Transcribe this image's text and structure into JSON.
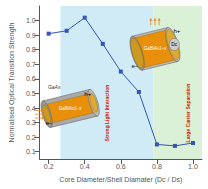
{
  "chart_data": {
    "type": "line",
    "x": [
      0.2,
      0.3,
      0.4,
      0.5,
      0.6,
      0.7,
      0.8,
      0.9,
      1.0
    ],
    "values": [
      0.91,
      0.93,
      1.02,
      0.84,
      0.65,
      0.51,
      0.15,
      0.14,
      0.16
    ],
    "color": "#3355bb",
    "marker": "square",
    "xlabel": "Core Diameter/Shell Diamater (Dc / Ds)",
    "ylabel": "Normalised Optical Transition Strength",
    "xlim": [
      0.15,
      1.05
    ],
    "ylim": [
      0.05,
      1.1
    ],
    "xticks": [
      0.2,
      0.4,
      0.6,
      0.8,
      {
        "value": 1.0,
        "label": "1.0"
      }
    ],
    "yticks": [
      0.1,
      0.2,
      0.3,
      0.4,
      0.5,
      0.6,
      0.7,
      0.8,
      0.9,
      {
        "value": 1.0,
        "label": "1.0"
      }
    ],
    "grid": false,
    "regions": [
      {
        "x": [
          0.265,
          0.78
        ],
        "color": "#c8e8f5"
      },
      {
        "x": [
          0.78,
          1.05
        ],
        "color": "#d5efd0"
      }
    ],
    "annotations": [
      {
        "text": "Strong Light Interaction",
        "color": "#cc2200"
      },
      {
        "text": "Large Carrier Separation",
        "color": "#cc2200"
      },
      {
        "text": "GaAs"
      },
      {
        "text": "GaBiAs1−x"
      },
      {
        "text": "h+"
      },
      {
        "text": "e−"
      },
      {
        "text": "GaBiAs1−x"
      },
      {
        "text": "h+"
      },
      {
        "text": "e−"
      },
      {
        "text": "Dc"
      }
    ]
  }
}
